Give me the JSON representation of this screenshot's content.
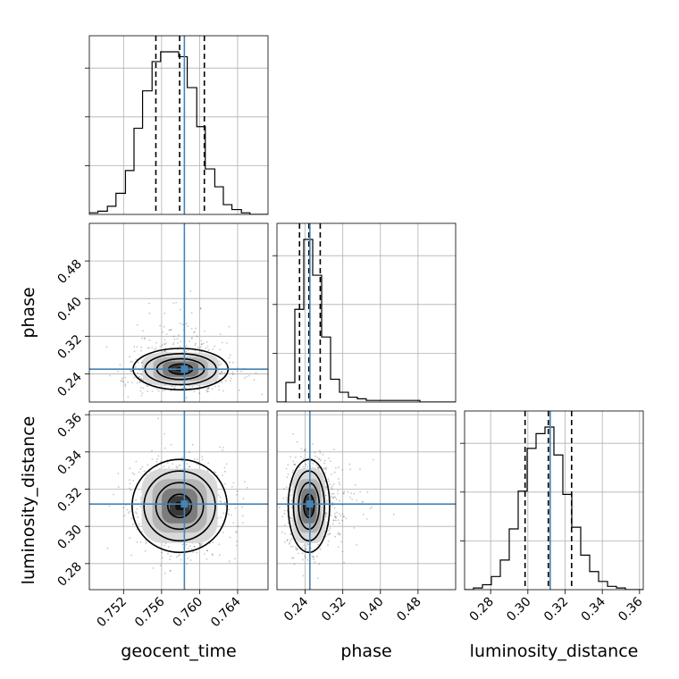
{
  "chart_data": {
    "type": "corner",
    "parameters": [
      "geocent_time",
      "phase",
      "luminosity_distance"
    ],
    "truths": {
      "geocent_time": 0.7584,
      "phase": 0.25,
      "luminosity_distance": 0.312
    },
    "quantiles_shown": [
      0.16,
      0.5,
      0.84
    ],
    "quantile_values": {
      "geocent_time": [
        0.7554,
        0.7579,
        0.7605
      ],
      "phase": [
        0.228,
        0.248,
        0.272
      ],
      "luminosity_distance": [
        0.2985,
        0.311,
        0.3235
      ]
    },
    "axes": {
      "geocent_time": {
        "range": [
          0.7484,
          0.7672
        ],
        "ticks": [
          0.752,
          0.756,
          0.76,
          0.764
        ],
        "tick_labels": [
          "0.752",
          "0.756",
          "0.760",
          "0.764"
        ]
      },
      "phase": {
        "range": [
          0.18,
          0.56
        ],
        "ticks": [
          0.24,
          0.32,
          0.4,
          0.48
        ],
        "tick_labels": [
          "0.24",
          "0.32",
          "0.40",
          "0.48"
        ]
      },
      "luminosity_distance": {
        "range": [
          0.266,
          0.362
        ],
        "ticks": [
          0.28,
          0.3,
          0.32,
          0.34,
          0.36
        ],
        "tick_labels": [
          "0.28",
          "0.30",
          "0.32",
          "0.34",
          "0.36"
        ]
      }
    },
    "histograms": {
      "geocent_time": {
        "bin_edges": [
          0.7484,
          0.7493,
          0.7503,
          0.7512,
          0.7522,
          0.7531,
          0.754,
          0.755,
          0.7559,
          0.7569,
          0.7578,
          0.7587,
          0.7597,
          0.7606,
          0.7616,
          0.7625,
          0.7634,
          0.7644,
          0.7653,
          0.7663,
          0.7672
        ],
        "counts": [
          1,
          2,
          5,
          13,
          27,
          53,
          76,
          94,
          100,
          100,
          97,
          78,
          54,
          28,
          17,
          6,
          3,
          1,
          0,
          0
        ]
      },
      "phase": {
        "bin_edges": [
          0.18,
          0.199,
          0.218,
          0.237,
          0.256,
          0.275,
          0.294,
          0.313,
          0.332,
          0.351,
          0.37,
          0.389,
          0.408,
          0.427,
          0.446,
          0.465,
          0.484,
          0.503,
          0.522,
          0.541,
          0.56
        ],
        "counts": [
          0,
          12,
          57,
          100,
          78,
          40,
          14,
          6,
          3,
          2,
          1,
          1,
          1,
          1,
          1,
          1,
          0,
          0,
          0,
          0
        ]
      },
      "luminosity_distance": {
        "bin_edges": [
          0.266,
          0.2708,
          0.2756,
          0.2804,
          0.2852,
          0.29,
          0.2948,
          0.2996,
          0.3044,
          0.3092,
          0.314,
          0.3188,
          0.3236,
          0.3284,
          0.3332,
          0.338,
          0.3428,
          0.3476,
          0.3524,
          0.3572,
          0.362
        ],
        "counts": [
          0,
          1,
          3,
          8,
          18,
          37,
          60,
          86,
          95,
          99,
          82,
          58,
          38,
          21,
          11,
          5,
          2,
          1,
          0,
          0
        ]
      }
    },
    "joint_2d": [
      {
        "x": "geocent_time",
        "y": "phase",
        "center": [
          0.758,
          0.25
        ],
        "sigma": [
          0.0025,
          0.022
        ],
        "contour_levels": [
          "0.5 sigma",
          "1 sigma",
          "1.5 sigma",
          "2 sigma"
        ]
      },
      {
        "x": "geocent_time",
        "y": "luminosity_distance",
        "center": [
          0.7579,
          0.311
        ],
        "sigma": [
          0.0025,
          0.0125
        ],
        "contour_levels": [
          "0.5 sigma",
          "1 sigma",
          "1.5 sigma",
          "2 sigma"
        ]
      },
      {
        "x": "phase",
        "y": "luminosity_distance",
        "center": [
          0.248,
          0.311
        ],
        "sigma": [
          0.022,
          0.0125
        ],
        "contour_levels": [
          "0.5 sigma",
          "1 sigma",
          "1.5 sigma",
          "2 sigma"
        ]
      }
    ]
  }
}
